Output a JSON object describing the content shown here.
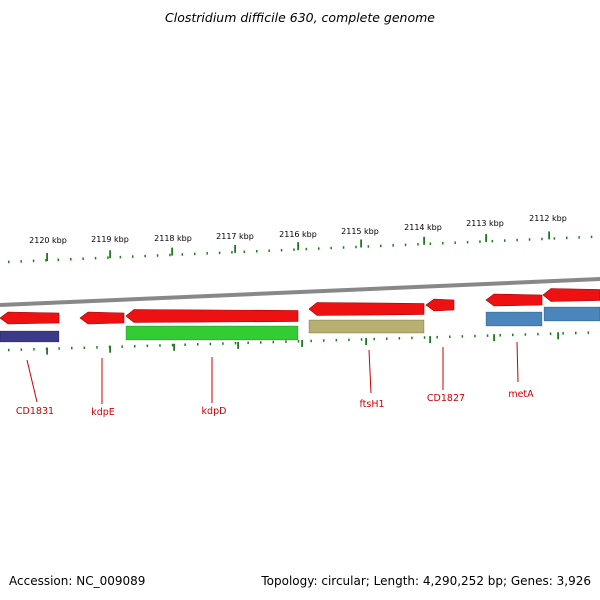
{
  "title": "Clostridium difficile 630, complete genome",
  "footer": {
    "accession": "Accession: NC_009089",
    "summary": "Topology: circular; Length: 4,290,252 bp; Genes: 3,926"
  },
  "ruler_labels": [
    "2120 kbp",
    "2119 kbp",
    "2118 kbp",
    "2117 kbp",
    "2116 kbp",
    "2115 kbp",
    "2114 kbp",
    "2113 kbp",
    "2112 kbp"
  ],
  "gene_labels": [
    "CD1831",
    "kdpE",
    "kdpD",
    "ftsH1",
    "CD1827",
    "metA"
  ],
  "colors": {
    "backbone": "#888888",
    "gene_arrow": "#ee1111",
    "tick": "#1f7a1f",
    "label": "#cc0000",
    "cds_navy": "#3a3a88",
    "cds_green": "#33cc33",
    "cds_khaki": "#b8b070",
    "cds_steelblue": "#4a86bb"
  }
}
